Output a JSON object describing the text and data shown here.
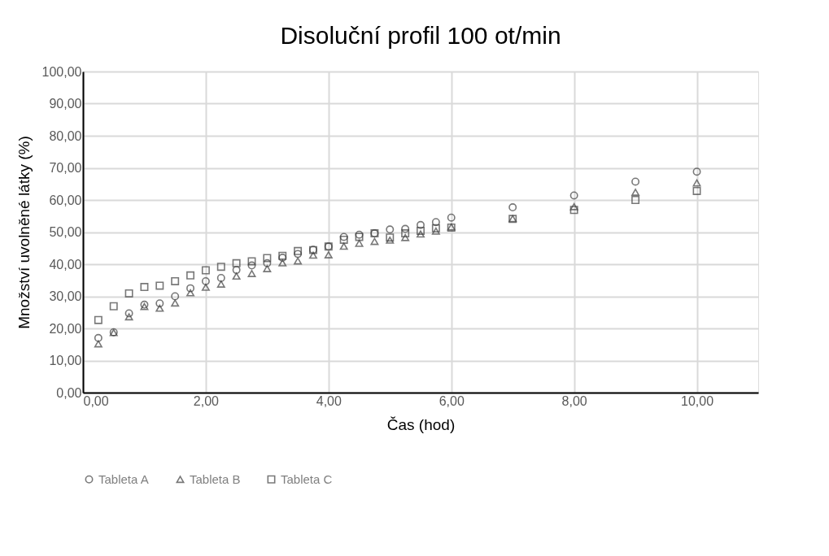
{
  "chart_data": {
    "type": "scatter",
    "title": "Disoluční profil 100 ot/min",
    "xlabel": "Čas (hod)",
    "ylabel": "Množství uvolněné látky (%)",
    "x": [
      0.25,
      0.5,
      0.75,
      1,
      1.25,
      1.5,
      1.75,
      2,
      2.25,
      2.5,
      2.75,
      3,
      3.25,
      3.5,
      3.75,
      4,
      4.25,
      4.5,
      4.75,
      5,
      5.25,
      5.5,
      5.75,
      6,
      7,
      8,
      9,
      10
    ],
    "series": [
      {
        "name": "Tableta A",
        "color": "#404040",
        "marker": "circle",
        "values": [
          17,
          18.8,
          24.7,
          27.4,
          27.8,
          30,
          32.5,
          34.7,
          35.7,
          38.2,
          39.6,
          40.3,
          42,
          43.2,
          44.5,
          45.5,
          48.5,
          49.2,
          49.6,
          50.8,
          51,
          52.2,
          53.1,
          54.5,
          57.7,
          61.4,
          65.7,
          68.8
        ]
      },
      {
        "name": "Tableta B",
        "color": "#404040",
        "marker": "triangle",
        "values": [
          15.2,
          18.7,
          23.6,
          26.8,
          26.3,
          27.9,
          31.1,
          32.8,
          33.8,
          36.3,
          37.1,
          38.6,
          40.4,
          41,
          42.8,
          42.9,
          45.6,
          46.5,
          47.1,
          47.5,
          48.3,
          49.4,
          50.3,
          51.6,
          54.2,
          57.9,
          62.4,
          65.3
        ]
      },
      {
        "name": "Tableta C",
        "color": "#404040",
        "marker": "square",
        "values": [
          22.6,
          26.9,
          30.9,
          32.9,
          33.3,
          34.7,
          36.5,
          38.1,
          39.2,
          40.3,
          40.9,
          41.9,
          42.6,
          44.1,
          44.4,
          45.5,
          47.6,
          48.5,
          49.6,
          48.3,
          49.6,
          50.4,
          51.2,
          51.4,
          54.1,
          56.9,
          60,
          62.8
        ]
      }
    ],
    "xlim": [
      0,
      11
    ],
    "xticks": [
      {
        "value": 0,
        "label": "0,00"
      },
      {
        "value": 2,
        "label": "2,00"
      },
      {
        "value": 4,
        "label": "4,00"
      },
      {
        "value": 6,
        "label": "6,00"
      },
      {
        "value": 8,
        "label": "8,00"
      },
      {
        "value": 10,
        "label": "10,00"
      }
    ],
    "ylim": [
      0,
      100
    ],
    "yticks": [
      {
        "value": 0,
        "label": "0,00"
      },
      {
        "value": 10,
        "label": "10,00"
      },
      {
        "value": 20,
        "label": "20,00"
      },
      {
        "value": 30,
        "label": "30,00"
      },
      {
        "value": 40,
        "label": "40,00"
      },
      {
        "value": 50,
        "label": "50,00"
      },
      {
        "value": 60,
        "label": "60,00"
      },
      {
        "value": 70,
        "label": "70,00"
      },
      {
        "value": 80,
        "label": "80,00"
      },
      {
        "value": 90,
        "label": "90,00"
      },
      {
        "value": 100,
        "label": "100,00"
      }
    ],
    "grid": true,
    "legend": "bottom"
  }
}
